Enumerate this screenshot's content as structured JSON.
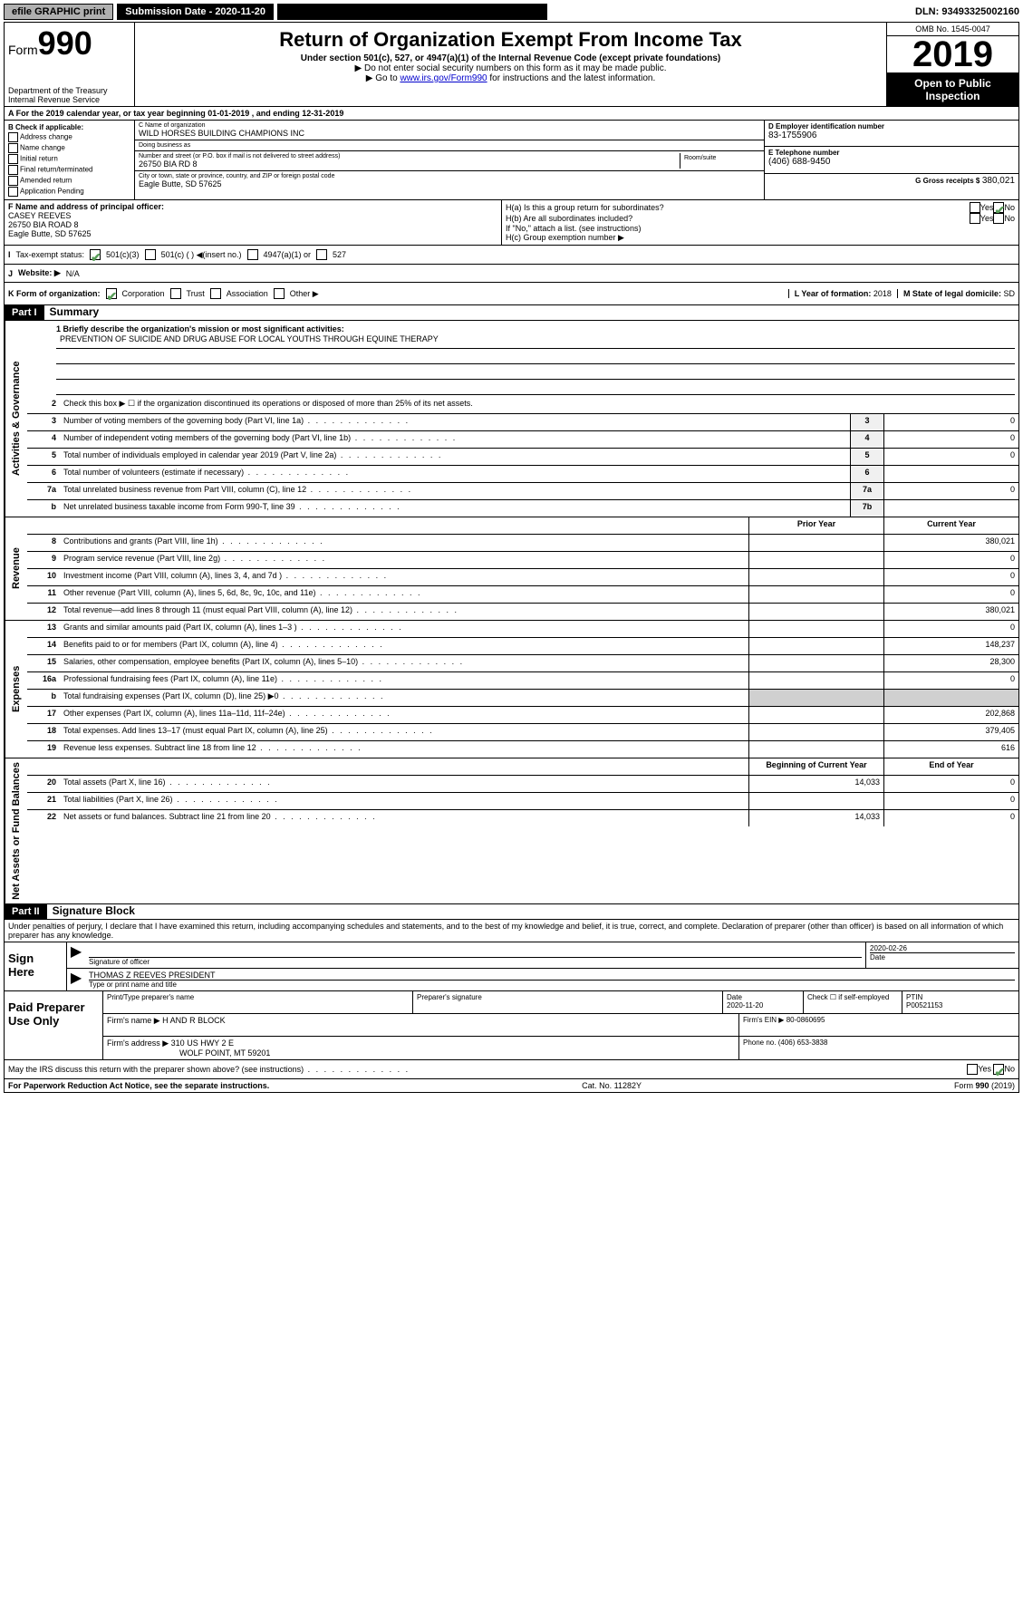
{
  "topbar": {
    "efile": "efile GRAPHIC print",
    "submission_label": "Submission Date - 2020-11-20",
    "dln": "DLN: 93493325002160"
  },
  "header": {
    "form_prefix": "Form",
    "form_number": "990",
    "title": "Return of Organization Exempt From Income Tax",
    "subtitle": "Under section 501(c), 527, or 4947(a)(1) of the Internal Revenue Code (except private foundations)",
    "note1": "▶ Do not enter social security numbers on this form as it may be made public.",
    "note2_pre": "▶ Go to ",
    "note2_link": "www.irs.gov/Form990",
    "note2_post": " for instructions and the latest information.",
    "dept": "Department of the Treasury\nInternal Revenue Service",
    "omb": "OMB No. 1545-0047",
    "year": "2019",
    "open": "Open to Public Inspection"
  },
  "rowA": "For the 2019 calendar year, or tax year beginning 01-01-2019    , and ending 12-31-2019",
  "boxB": {
    "label": "B Check if applicable:",
    "opts": [
      "Address change",
      "Name change",
      "Initial return",
      "Final return/terminated",
      "Amended return",
      "Application Pending"
    ]
  },
  "boxC": {
    "name_label": "C Name of organization",
    "name": "WILD HORSES BUILDING CHAMPIONS INC",
    "dba_label": "Doing business as",
    "dba": "",
    "addr_label": "Number and street (or P.O. box if mail is not delivered to street address)",
    "addr": "26750 BIA RD 8",
    "room_label": "Room/suite",
    "city_label": "City or town, state or province, country, and ZIP or foreign postal code",
    "city": "Eagle Butte, SD  57625"
  },
  "boxD": {
    "label": "D Employer identification number",
    "val": "83-1755906"
  },
  "boxE": {
    "label": "E Telephone number",
    "val": "(406) 688-9450"
  },
  "boxG": {
    "label": "G Gross receipts $",
    "val": "380,021"
  },
  "boxF": {
    "label": "F  Name and address of principal officer:",
    "name": "CASEY REEVES",
    "addr1": "26750 BIA ROAD 8",
    "addr2": "Eagle Butte, SD  57625"
  },
  "boxH": {
    "a": "H(a)  Is this a group return for subordinates?",
    "b": "H(b)  Are all subordinates included?",
    "b_note": "If \"No,\" attach a list. (see instructions)",
    "c": "H(c)  Group exemption number ▶",
    "yes": "Yes",
    "no": "No"
  },
  "rowI": {
    "label": "Tax-exempt status:",
    "opt1": "501(c)(3)",
    "opt2": "501(c) (   ) ◀(insert no.)",
    "opt3": "4947(a)(1) or",
    "opt4": "527"
  },
  "rowJ": {
    "label": "Website: ▶",
    "val": "N/A"
  },
  "rowK": {
    "label": "K Form of organization:",
    "opts": [
      "Corporation",
      "Trust",
      "Association",
      "Other ▶"
    ],
    "L_label": "L Year of formation:",
    "L_val": "2018",
    "M_label": "M State of legal domicile:",
    "M_val": "SD"
  },
  "part1": {
    "header": "Part I",
    "title": "Summary"
  },
  "sideLabels": {
    "gov": "Activities & Governance",
    "rev": "Revenue",
    "exp": "Expenses",
    "net": "Net Assets or Fund Balances"
  },
  "q1": {
    "label": "1  Briefly describe the organization's mission or most significant activities:",
    "text": "PREVENTION OF SUICIDE AND DRUG ABUSE FOR LOCAL YOUTHS THROUGH EQUINE THERAPY"
  },
  "q2": "Check this box ▶ ☐  if the organization discontinued its operations or disposed of more than 25% of its net assets.",
  "govLines": [
    {
      "n": "3",
      "t": "Number of voting members of the governing body (Part VI, line 1a)",
      "c": "3",
      "v": "0"
    },
    {
      "n": "4",
      "t": "Number of independent voting members of the governing body (Part VI, line 1b)",
      "c": "4",
      "v": "0"
    },
    {
      "n": "5",
      "t": "Total number of individuals employed in calendar year 2019 (Part V, line 2a)",
      "c": "5",
      "v": "0"
    },
    {
      "n": "6",
      "t": "Total number of volunteers (estimate if necessary)",
      "c": "6",
      "v": ""
    },
    {
      "n": "7a",
      "t": "Total unrelated business revenue from Part VIII, column (C), line 12",
      "c": "7a",
      "v": "0"
    },
    {
      "n": "b",
      "t": "Net unrelated business taxable income from Form 990-T, line 39",
      "c": "7b",
      "v": ""
    }
  ],
  "pycy": {
    "prior": "Prior Year",
    "current": "Current Year",
    "begin": "Beginning of Current Year",
    "end": "End of Year"
  },
  "revLines": [
    {
      "n": "8",
      "t": "Contributions and grants (Part VIII, line 1h)",
      "p": "",
      "c": "380,021"
    },
    {
      "n": "9",
      "t": "Program service revenue (Part VIII, line 2g)",
      "p": "",
      "c": "0"
    },
    {
      "n": "10",
      "t": "Investment income (Part VIII, column (A), lines 3, 4, and 7d )",
      "p": "",
      "c": "0"
    },
    {
      "n": "11",
      "t": "Other revenue (Part VIII, column (A), lines 5, 6d, 8c, 9c, 10c, and 11e)",
      "p": "",
      "c": "0"
    },
    {
      "n": "12",
      "t": "Total revenue—add lines 8 through 11 (must equal Part VIII, column (A), line 12)",
      "p": "",
      "c": "380,021"
    }
  ],
  "expLines": [
    {
      "n": "13",
      "t": "Grants and similar amounts paid (Part IX, column (A), lines 1–3 )",
      "p": "",
      "c": "0"
    },
    {
      "n": "14",
      "t": "Benefits paid to or for members (Part IX, column (A), line 4)",
      "p": "",
      "c": "148,237"
    },
    {
      "n": "15",
      "t": "Salaries, other compensation, employee benefits (Part IX, column (A), lines 5–10)",
      "p": "",
      "c": "28,300"
    },
    {
      "n": "16a",
      "t": "Professional fundraising fees (Part IX, column (A), line 11e)",
      "p": "",
      "c": "0"
    },
    {
      "n": "b",
      "t": "Total fundraising expenses (Part IX, column (D), line 25) ▶0",
      "p": "SHADE",
      "c": "SHADE"
    },
    {
      "n": "17",
      "t": "Other expenses (Part IX, column (A), lines 11a–11d, 11f–24e)",
      "p": "",
      "c": "202,868"
    },
    {
      "n": "18",
      "t": "Total expenses. Add lines 13–17 (must equal Part IX, column (A), line 25)",
      "p": "",
      "c": "379,405"
    },
    {
      "n": "19",
      "t": "Revenue less expenses. Subtract line 18 from line 12",
      "p": "",
      "c": "616"
    }
  ],
  "netLines": [
    {
      "n": "20",
      "t": "Total assets (Part X, line 16)",
      "p": "14,033",
      "c": "0"
    },
    {
      "n": "21",
      "t": "Total liabilities (Part X, line 26)",
      "p": "",
      "c": "0"
    },
    {
      "n": "22",
      "t": "Net assets or fund balances. Subtract line 21 from line 20",
      "p": "14,033",
      "c": "0"
    }
  ],
  "part2": {
    "header": "Part II",
    "title": "Signature Block",
    "declaration": "Under penalties of perjury, I declare that I have examined this return, including accompanying schedules and statements, and to the best of my knowledge and belief, it is true, correct, and complete. Declaration of preparer (other than officer) is based on all information of which preparer has any knowledge."
  },
  "sign": {
    "here": "Sign Here",
    "sig_label": "Signature of officer",
    "date": "2020-02-26",
    "date_label": "Date",
    "name": "THOMAS Z REEVES PRESIDENT",
    "name_label": "Type or print name and title"
  },
  "paid": {
    "label": "Paid Preparer Use Only",
    "prep_name_label": "Print/Type preparer's name",
    "prep_sig_label": "Preparer's signature",
    "date_label": "Date",
    "date": "2020-11-20",
    "check_label": "Check ☐ if self-employed",
    "ptin_label": "PTIN",
    "ptin": "P00521153",
    "firm_name_label": "Firm's name    ▶",
    "firm_name": "H AND R BLOCK",
    "firm_ein_label": "Firm's EIN ▶",
    "firm_ein": "80-0860695",
    "firm_addr_label": "Firm's address ▶",
    "firm_addr": "310 US HWY 2 E",
    "firm_city": "WOLF POINT, MT  59201",
    "phone_label": "Phone no.",
    "phone": "(406) 653-3838"
  },
  "discuss": "May the IRS discuss this return with the preparer shown above? (see instructions)",
  "footer": {
    "pra": "For Paperwork Reduction Act Notice, see the separate instructions.",
    "cat": "Cat. No. 11282Y",
    "form": "Form 990 (2019)"
  }
}
